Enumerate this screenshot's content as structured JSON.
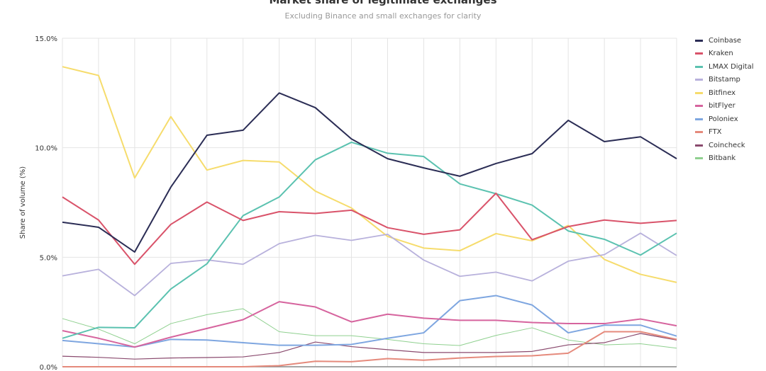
{
  "chart_data": {
    "type": "line",
    "title": "Market share of legitimate exchanges",
    "subtitle": "Excluding Binance and small exchanges for clarity",
    "ylabel": "Share of volume (%)",
    "xlabel": "",
    "ylim": [
      0,
      15
    ],
    "yticks": [
      "0.0%",
      "5.0%",
      "10.0%",
      "15.0%"
    ],
    "grid": true,
    "legend": "right",
    "series": [
      {
        "name": "Coinbase",
        "color": "#2b2d55",
        "values": [
          6.6,
          6.37,
          5.24,
          8.2,
          10.57,
          10.8,
          12.5,
          11.83,
          10.4,
          9.5,
          9.08,
          8.7,
          9.28,
          9.73,
          11.25,
          10.28,
          10.5,
          9.5
        ]
      },
      {
        "name": "Kraken",
        "color": "#d9536a",
        "values": [
          7.75,
          6.7,
          4.68,
          6.5,
          7.52,
          6.68,
          7.08,
          7.0,
          7.15,
          6.35,
          6.05,
          6.25,
          7.92,
          5.8,
          6.4,
          6.7,
          6.55,
          6.68
        ]
      },
      {
        "name": "LMAX Digital",
        "color": "#5bc2b0",
        "values": [
          1.3,
          1.8,
          1.78,
          3.55,
          4.7,
          6.9,
          7.75,
          9.45,
          10.25,
          9.75,
          9.6,
          8.35,
          7.9,
          7.38,
          6.2,
          5.82,
          5.1,
          6.1
        ]
      },
      {
        "name": "Bitstamp",
        "color": "#b8b1dc",
        "values": [
          4.15,
          4.45,
          3.25,
          4.72,
          4.88,
          4.68,
          5.62,
          6.0,
          5.77,
          6.05,
          4.87,
          4.13,
          4.32,
          3.92,
          4.82,
          5.12,
          6.1,
          5.08
        ]
      },
      {
        "name": "Bitfinex",
        "color": "#f6dc6c",
        "values": [
          13.7,
          13.3,
          8.62,
          11.42,
          8.98,
          9.42,
          9.35,
          8.02,
          7.25,
          5.95,
          5.42,
          5.3,
          6.08,
          5.75,
          6.45,
          4.9,
          4.22,
          3.85
        ]
      },
      {
        "name": "bitFlyer",
        "color": "#d6649e",
        "values": [
          1.65,
          1.3,
          0.9,
          1.35,
          1.75,
          2.15,
          2.97,
          2.73,
          2.05,
          2.4,
          2.22,
          2.12,
          2.12,
          2.02,
          1.97,
          1.97,
          2.18,
          1.87
        ]
      },
      {
        "name": "Poloniex",
        "color": "#7ea6e0",
        "values": [
          1.2,
          1.05,
          0.9,
          1.25,
          1.22,
          1.1,
          0.98,
          0.98,
          1.02,
          1.3,
          1.55,
          3.02,
          3.25,
          2.82,
          1.55,
          1.9,
          1.9,
          1.4
        ]
      },
      {
        "name": "FTX",
        "color": "#e58a7c",
        "values": [
          0,
          0,
          0,
          0,
          0,
          0,
          0.05,
          0.25,
          0.23,
          0.37,
          0.3,
          0.4,
          0.47,
          0.5,
          0.62,
          1.6,
          1.6,
          1.25
        ]
      },
      {
        "name": "Coincheck",
        "color": "#8a4a6e",
        "values": [
          0.48,
          0.43,
          0.35,
          0.4,
          0.42,
          0.45,
          0.65,
          1.13,
          0.92,
          0.78,
          0.65,
          0.65,
          0.65,
          0.7,
          1.0,
          1.1,
          1.52,
          1.22
        ]
      },
      {
        "name": "Bitbank",
        "color": "#8fd08f",
        "values": [
          2.2,
          1.72,
          1.05,
          1.97,
          2.38,
          2.65,
          1.6,
          1.42,
          1.42,
          1.25,
          1.05,
          0.97,
          1.43,
          1.78,
          1.22,
          1.0,
          1.05,
          0.85
        ]
      }
    ]
  }
}
